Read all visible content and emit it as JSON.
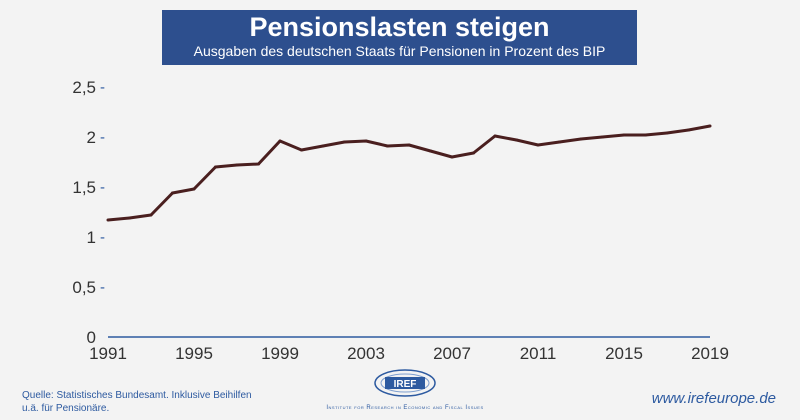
{
  "header": {
    "title": "Pensionslasten steigen",
    "subtitle": "Ausgaben des deutschen Staats für Pensionen in Prozent des BIP"
  },
  "chart_data": {
    "type": "line",
    "title": "Pensionslasten steigen",
    "subtitle": "Ausgaben des deutschen Staats für Pensionen in Prozent des BIP",
    "xlabel": "",
    "ylabel": "",
    "x": [
      1991,
      1992,
      1993,
      1994,
      1995,
      1996,
      1997,
      1998,
      1999,
      2000,
      2001,
      2002,
      2003,
      2004,
      2005,
      2006,
      2007,
      2008,
      2009,
      2010,
      2011,
      2012,
      2013,
      2014,
      2015,
      2016,
      2017,
      2018,
      2019
    ],
    "series": [
      {
        "values": [
          1.17,
          1.19,
          1.22,
          1.44,
          1.48,
          1.7,
          1.72,
          1.73,
          1.96,
          1.87,
          1.91,
          1.95,
          1.96,
          1.91,
          1.92,
          1.86,
          1.8,
          1.84,
          2.01,
          1.97,
          1.92,
          1.95,
          1.98,
          2.0,
          2.02,
          2.02,
          2.04,
          2.07,
          2.11
        ],
        "color": "#4a1f1f"
      }
    ],
    "x_ticks": [
      "1991",
      "1995",
      "1999",
      "2003",
      "2007",
      "2011",
      "2015",
      "2019"
    ],
    "y_ticks": [
      "0",
      "0,5",
      "1",
      "1,5",
      "2",
      "2,5"
    ],
    "y_tick_values": [
      0,
      0.5,
      1,
      1.5,
      2,
      2.5
    ],
    "xlim": [
      1991,
      2019
    ],
    "ylim": [
      0,
      2.5
    ],
    "grid": false,
    "legend": "none"
  },
  "footer": {
    "source": "Quelle: Statistisches Bundesamt. Inklusive Beihilfen u.ä. für Pensionäre.",
    "logo_text": "IREF",
    "logo_subtitle": "Institute for Research in Economic and Fiscal Issues",
    "website": "www.irefeurope.de"
  },
  "colors": {
    "title_bg": "#2d4f8e",
    "line": "#4a1f1f",
    "accent": "#2d5aa0"
  }
}
